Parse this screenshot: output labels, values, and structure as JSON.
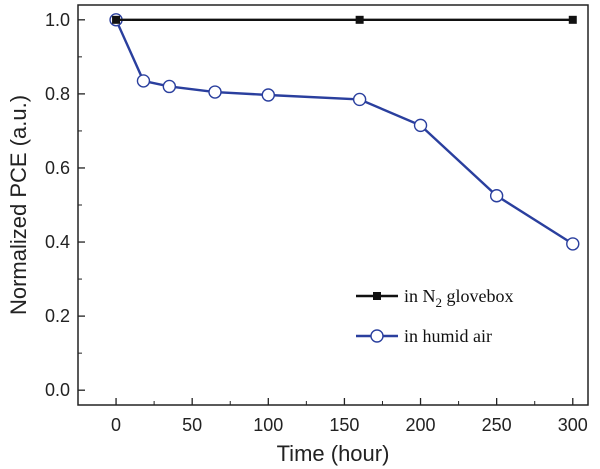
{
  "chart_data": {
    "type": "line",
    "xlabel": "Time (hour)",
    "ylabel": "Normalized PCE (a.u.)",
    "xlim": [
      -25,
      310
    ],
    "ylim": [
      -0.04,
      1.04
    ],
    "xticks": [
      0,
      50,
      100,
      150,
      200,
      250,
      300
    ],
    "yticks": [
      0.0,
      0.2,
      0.4,
      0.6,
      0.8,
      1.0
    ],
    "xtick_labels": [
      "0",
      "50",
      "100",
      "150",
      "200",
      "250",
      "300"
    ],
    "ytick_labels": [
      "0.0",
      "0.2",
      "0.4",
      "0.6",
      "0.8",
      "1.0"
    ],
    "grid": false,
    "legend_position": "lower-right",
    "series": [
      {
        "name": "in N2 glovebox",
        "legend_prefix": "in N",
        "legend_subscript": "2",
        "legend_suffix": " glovebox",
        "color": "#111111",
        "marker": "filled-square",
        "x": [
          0,
          160,
          300
        ],
        "y": [
          1.0,
          1.0,
          1.0
        ]
      },
      {
        "name": "in humid air",
        "legend_prefix": "in humid air",
        "legend_subscript": "",
        "legend_suffix": "",
        "color": "#2a3f9e",
        "marker": "open-circle",
        "x": [
          0,
          18,
          35,
          65,
          100,
          160,
          200,
          250,
          300
        ],
        "y": [
          1.0,
          0.835,
          0.82,
          0.805,
          0.797,
          0.785,
          0.715,
          0.525,
          0.395
        ]
      }
    ]
  }
}
